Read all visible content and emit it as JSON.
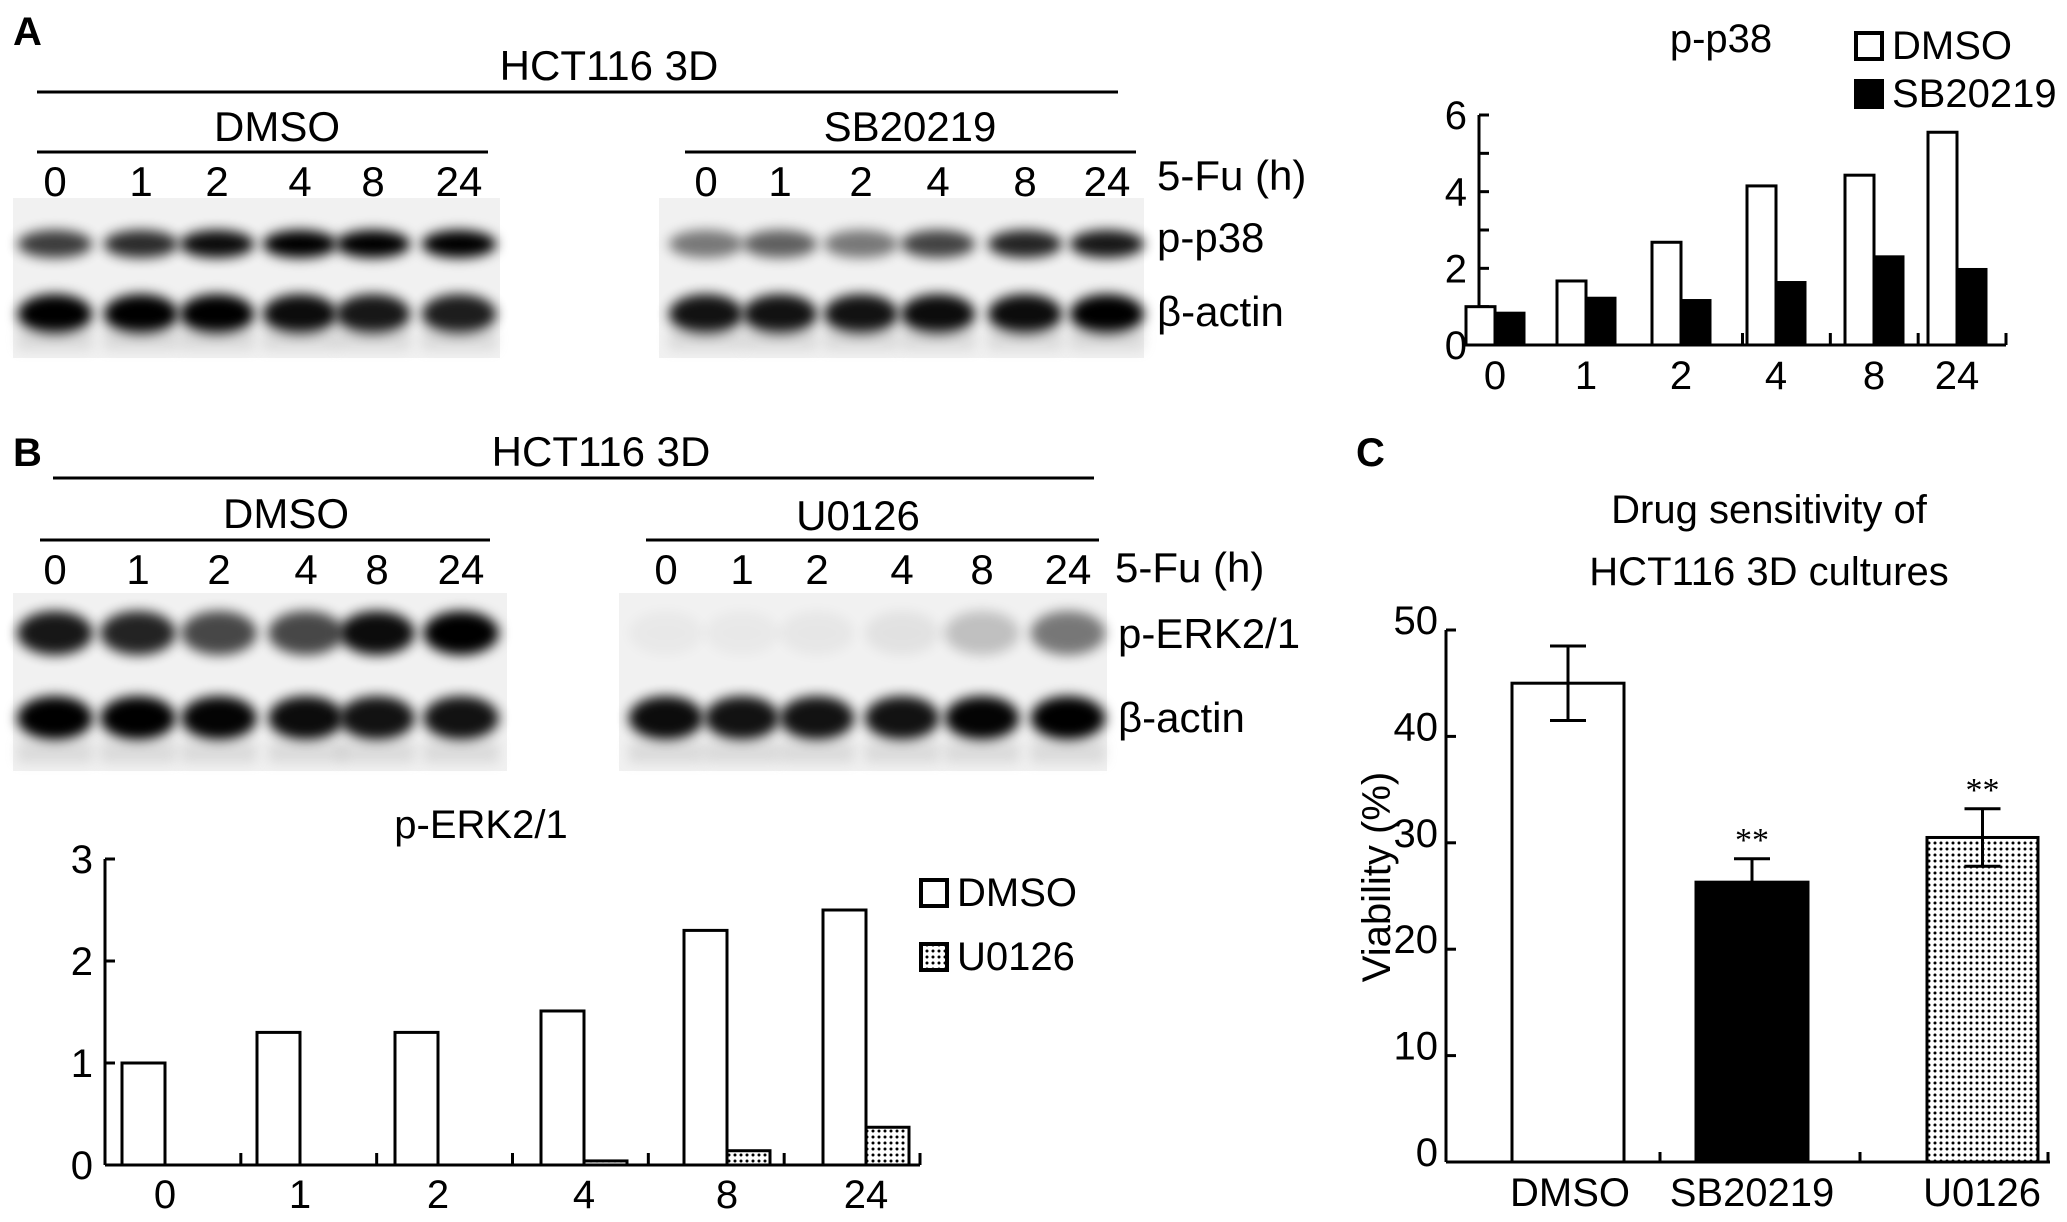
{
  "panels": {
    "A": {
      "label": "A",
      "cell_line": "HCT116 3D",
      "groups": [
        {
          "name": "DMSO",
          "lanes": [
            "0",
            "1",
            "2",
            "4",
            "8",
            "24"
          ]
        },
        {
          "name": "SB20219",
          "lanes": [
            "0",
            "1",
            "2",
            "4",
            "8",
            "24"
          ]
        }
      ],
      "time_label": "5-Fu (h)",
      "bands": [
        "p-p38",
        "β-actin"
      ]
    },
    "B": {
      "label": "B",
      "cell_line": "HCT116 3D",
      "groups": [
        {
          "name": "DMSO",
          "lanes": [
            "0",
            "1",
            "2",
            "4",
            "8",
            "24"
          ]
        },
        {
          "name": "U0126",
          "lanes": [
            "0",
            "1",
            "2",
            "4",
            "8",
            "24"
          ]
        }
      ],
      "time_label": "5-Fu (h)",
      "bands": [
        "p-ERK2/1",
        "β-actin"
      ]
    },
    "C": {
      "label": "C"
    }
  },
  "colors": {
    "DMSO": "#ffffff",
    "SB20219": "#000000",
    "U0126": "dotted-pattern",
    "axis": "#000000"
  },
  "chart_data": [
    {
      "type": "bar",
      "title": "p-p38",
      "categories": [
        "0",
        "1",
        "2",
        "4",
        "8",
        "24"
      ],
      "series": [
        {
          "name": "DMSO",
          "values": [
            1.0,
            1.67,
            2.68,
            4.15,
            4.43,
            5.55
          ]
        },
        {
          "name": "SB20219",
          "values": [
            0.83,
            1.22,
            1.16,
            1.63,
            2.3,
            1.97
          ]
        }
      ],
      "ylim": [
        0,
        6
      ],
      "yticks": [
        0,
        2,
        4,
        6
      ],
      "grid": false,
      "legend": "top-right"
    },
    {
      "type": "bar",
      "title": "p-ERK2/1",
      "categories": [
        "0",
        "1",
        "2",
        "4",
        "8",
        "24"
      ],
      "series": [
        {
          "name": "DMSO",
          "values": [
            1.0,
            1.3,
            1.3,
            1.51,
            2.3,
            2.5
          ]
        },
        {
          "name": "U0126",
          "values": [
            0,
            0,
            0,
            0.04,
            0.14,
            0.37
          ]
        }
      ],
      "ylim": [
        0,
        3
      ],
      "yticks": [
        0,
        1,
        2,
        3
      ],
      "grid": false,
      "legend": "right"
    },
    {
      "type": "bar",
      "title_lines": [
        "Drug sensitivity of",
        "HCT116 3D cultures"
      ],
      "categories": [
        "DMSO",
        "SB20219",
        "U0126"
      ],
      "values": [
        45.0,
        26.3,
        30.5
      ],
      "errors": [
        3.5,
        2.2,
        2.7
      ],
      "annotations": [
        "",
        "**",
        "**"
      ],
      "ylabel": "Viability (%)",
      "ylim": [
        0,
        50
      ],
      "yticks": [
        0,
        10,
        20,
        30,
        40,
        50
      ],
      "grid": false
    }
  ]
}
